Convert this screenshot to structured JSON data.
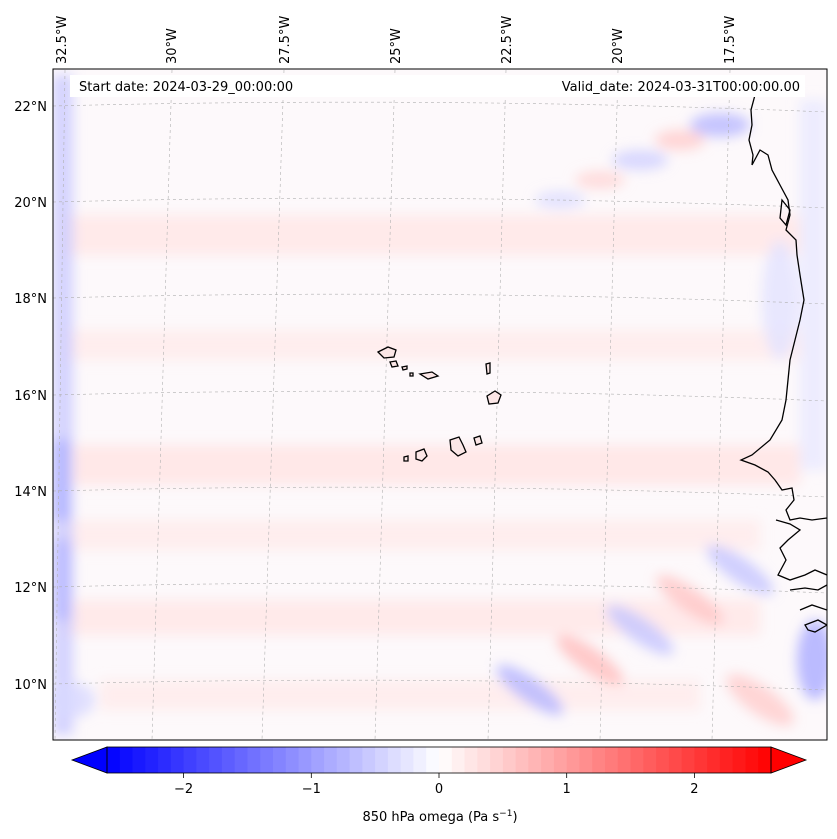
{
  "map": {
    "start_label": "Start date: 2024-03-29_00:00:00",
    "valid_label": "Valid_date: 2024-03-31T00:00:00.00",
    "lon_labels": [
      "32.5°W",
      "30°W",
      "27.5°W",
      "25°W",
      "22.5°W",
      "20°W",
      "17.5°W"
    ],
    "lat_labels": [
      "22°N",
      "20°N",
      "18°N",
      "16°N",
      "14°N",
      "12°N",
      "10°N"
    ]
  },
  "colorbar": {
    "label_main": "850 hPa omega (Pa s",
    "label_sup": "−1",
    "label_end": ")",
    "ticks": [
      "−2",
      "−1",
      "0",
      "1",
      "2"
    ],
    "tick_values": [
      -2,
      -1,
      0,
      1,
      2
    ],
    "range": [
      -2.6,
      2.6
    ],
    "colormap": "bwr",
    "color_low": "#0000ff",
    "color_mid": "#ffffff",
    "color_high": "#ff0000"
  }
}
